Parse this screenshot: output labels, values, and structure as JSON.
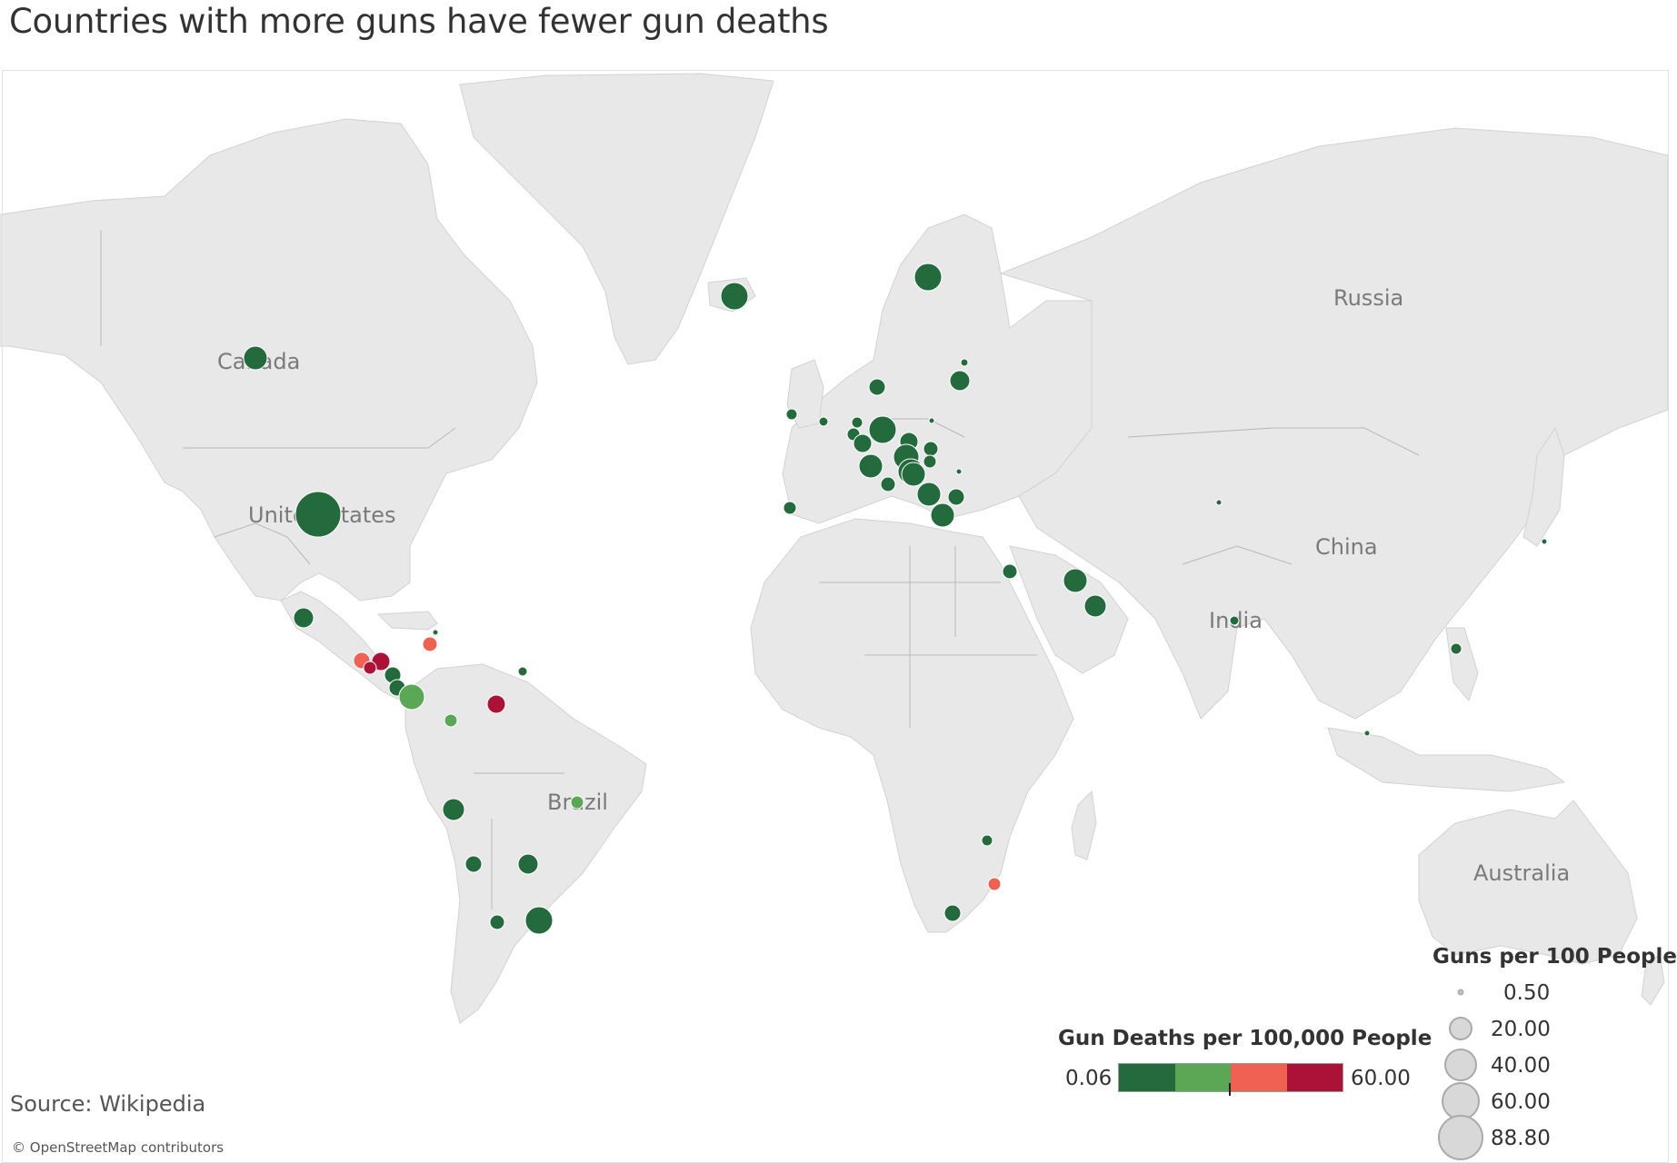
{
  "title": "Countries with more guns have fewer gun deaths",
  "source": "Source: Wikipedia",
  "attribution": "© OpenStreetMap contributors",
  "map_labels": {
    "canada": "Canada",
    "united_states": "United States",
    "brazil": "Brazil",
    "russia": "Russia",
    "china": "China",
    "india": "India",
    "australia": "Australia"
  },
  "color_legend": {
    "title": "Gun Deaths per 100,000 People",
    "min": "0.06",
    "max": "60.00",
    "colors": [
      "#236b3c",
      "#5aa856",
      "#f06152",
      "#ac1237"
    ]
  },
  "size_legend": {
    "title": "Guns per 100 People",
    "values": [
      "0.50",
      "20.00",
      "40.00",
      "60.00",
      "88.80"
    ]
  },
  "marker_colors": {
    "dark_green": "#236b3c",
    "light_green": "#5aa856",
    "salmon": "#f06152",
    "crimson": "#ac1237"
  }
}
